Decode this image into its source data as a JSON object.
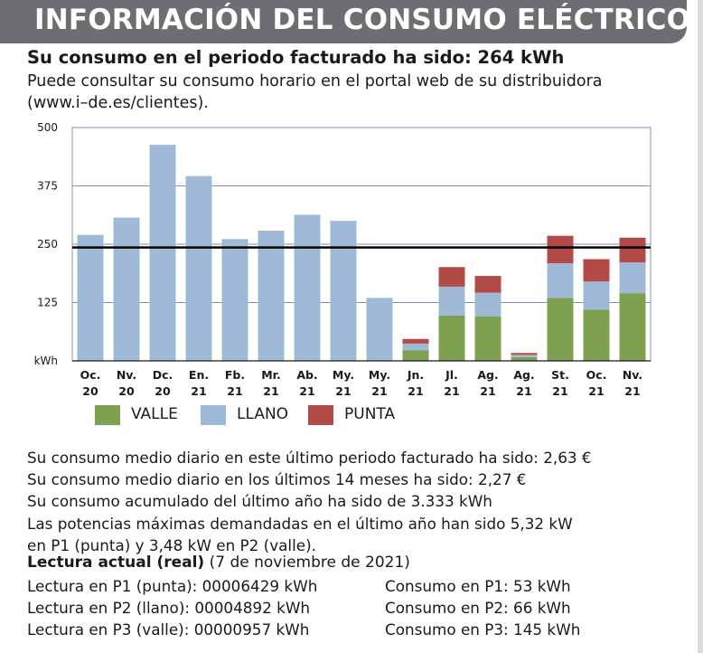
{
  "header": {
    "title": "INFORMACIÓN DEL CONSUMO ELÉCTRICO"
  },
  "headline": "Su consumo en el periodo facturado ha sido: 264 kWh",
  "subtext": [
    "Puede consultar su consumo horario en el portal web de su distribuidora",
    "(www.i–de.es/clientes)."
  ],
  "legend": [
    {
      "name": "VALLE",
      "color": "#7f9f51"
    },
    {
      "name": "LLANO",
      "color": "#9fbad6"
    },
    {
      "name": "PUNTA",
      "color": "#b24a48"
    }
  ],
  "chart_data": {
    "type": "bar",
    "stacked": true,
    "title": "",
    "xlabel": "",
    "ylabel": "kWh",
    "ylim": [
      0,
      500
    ],
    "yticks": [
      0,
      125,
      250,
      375,
      500
    ],
    "ytick_labels": [
      "kWh",
      "125",
      "250",
      "375",
      "500"
    ],
    "grid": true,
    "reference_line": 243,
    "categories": [
      [
        "Oc.",
        "20"
      ],
      [
        "Nv.",
        "20"
      ],
      [
        "Dc.",
        "20"
      ],
      [
        "En.",
        "21"
      ],
      [
        "Fb.",
        "21"
      ],
      [
        "Mr.",
        "21"
      ],
      [
        "Ab.",
        "21"
      ],
      [
        "My.",
        "21"
      ],
      [
        "My.",
        "21"
      ],
      [
        "Jn.",
        "21"
      ],
      [
        "Jl.",
        "21"
      ],
      [
        "Ag.",
        "21"
      ],
      [
        "Ag.",
        "21"
      ],
      [
        "St.",
        "21"
      ],
      [
        "Oc.",
        "21"
      ],
      [
        "Nv.",
        "21"
      ]
    ],
    "series": [
      {
        "name": "VALLE",
        "values": [
          0,
          0,
          0,
          0,
          0,
          0,
          0,
          0,
          0,
          23,
          97,
          95,
          8,
          135,
          110,
          145
        ]
      },
      {
        "name": "LLANO",
        "values": [
          270,
          307,
          463,
          396,
          261,
          279,
          313,
          300,
          135,
          14,
          62,
          51,
          5,
          74,
          60,
          66
        ]
      },
      {
        "name": "PUNTA",
        "values": [
          0,
          0,
          0,
          0,
          0,
          0,
          0,
          0,
          0,
          10,
          42,
          36,
          4,
          59,
          48,
          53
        ]
      }
    ]
  },
  "stats": [
    "Su consumo medio diario en este último periodo facturado ha sido: 2,63 €",
    "Su consumo medio diario en los últimos 14 meses ha sido: 2,27 €",
    "Su consumo acumulado del último año ha sido de 3.333 kWh",
    "Las potencias máximas demandadas en el último año han sido 5,32 kW",
    "en P1 (punta) y 3,48 kW en P2 (valle)."
  ],
  "lectura": {
    "title": "Lectura actual (real)",
    "date": " (7 de noviembre de 2021)"
  },
  "readings": [
    "Lectura en P1 (punta): 00006429 kWh",
    "Lectura en P2 (llano): 00004892 kWh",
    "Lectura en P3 (valle): 00000957 kWh"
  ],
  "consumos": [
    "Consumo en P1: 53 kWh",
    "Consumo en P2: 66 kWh",
    "Consumo en P3: 145 kWh"
  ]
}
